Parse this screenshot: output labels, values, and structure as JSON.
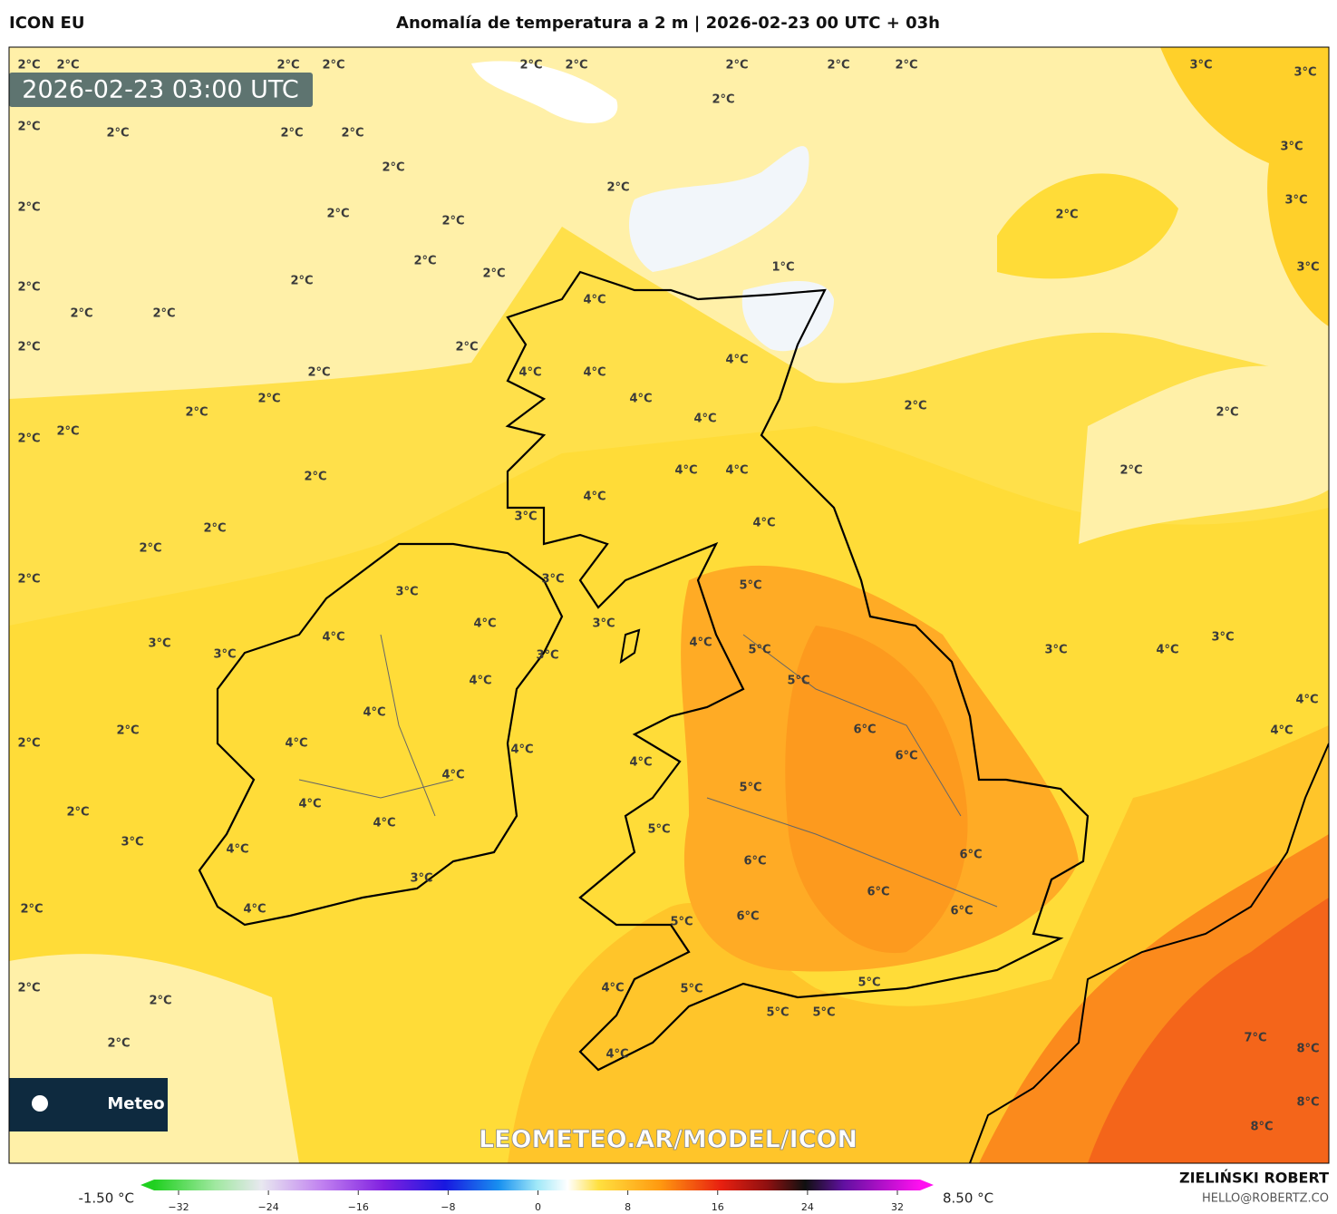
{
  "header": {
    "model": "ICON EU",
    "title": "Anomalía de temperatura a 2 m | 2026-02-23 00 UTC + 03h"
  },
  "map": {
    "valid_time": "2026-02-23 03:00 UTC",
    "logo_text": "Meteo",
    "watermark": "LEOMETEO.AR/MODEL/ICON",
    "labels": [
      "2°C",
      "2°C",
      "2°C",
      "2°C",
      "2°C",
      "2°C",
      "2°C",
      "2°C",
      "2°C",
      "3°C",
      "3°C",
      "2°C",
      "2°C",
      "2°C",
      "2°C",
      "2°C",
      "3°C",
      "2°C",
      "2°C",
      "2°C",
      "2°C",
      "2°C",
      "2°C",
      "3°C",
      "2°C",
      "2°C",
      "1°C",
      "3°C",
      "2°C",
      "2°C",
      "2°C",
      "2°C",
      "4°C",
      "2°C",
      "2°C",
      "2°C",
      "4°C",
      "4°C",
      "4°C",
      "2°C",
      "2°C",
      "4°C",
      "4°C",
      "2°C",
      "2°C",
      "2°C",
      "2°C",
      "2°C",
      "2°C",
      "4°C",
      "4°C",
      "4°C",
      "3°C",
      "4°C",
      "2°C",
      "2°C",
      "2°C",
      "3°C",
      "5°C",
      "3°C",
      "4°C",
      "3°C",
      "4°C",
      "3°C",
      "3°C",
      "3°C",
      "4°C",
      "5°C",
      "3°C",
      "4°C",
      "3°C",
      "4°C",
      "5°C",
      "4°C",
      "4°C",
      "6°C",
      "4°C",
      "2°C",
      "2°C",
      "4°C",
      "4°C",
      "6°C",
      "4°C",
      "4°C",
      "5°C",
      "4°C",
      "2°C",
      "5°C",
      "4°C",
      "3°C",
      "4°C",
      "6°C",
      "6°C",
      "3°C",
      "6°C",
      "2°C",
      "4°C",
      "6°C",
      "5°C",
      "6°C",
      "4°C",
      "5°C",
      "5°C",
      "2°C",
      "2°C",
      "5°C",
      "5°C",
      "7°C",
      "2°C",
      "4°C",
      "8°C",
      "8°C",
      "8°C"
    ]
  },
  "colorbar": {
    "min_label": "-1.50 °C",
    "max_label": "8.50 °C",
    "range": [
      -32,
      32
    ],
    "ticks": [
      {
        "value": -32,
        "label": "−32"
      },
      {
        "value": -24,
        "label": "−24"
      },
      {
        "value": -16,
        "label": "−16"
      },
      {
        "value": -8,
        "label": "−8"
      },
      0,
      8,
      16,
      24,
      32
    ]
  },
  "footer": {
    "author": "ZIELIŃSKI ROBERT",
    "contact": "HELLO@ROBERTZ.CO"
  }
}
